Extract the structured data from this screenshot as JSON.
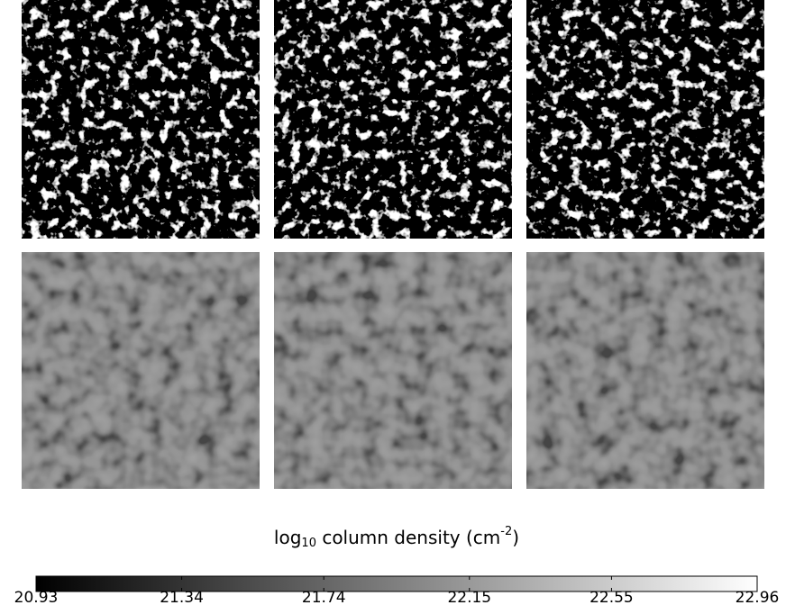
{
  "chart_data": {
    "type": "colorbar",
    "label": {
      "main": "log",
      "sub": "10",
      "middle": " column density (cm",
      "sup": "-2",
      "end": ")"
    },
    "xlim": [
      20.93,
      22.96
    ],
    "xticks": [
      20.93,
      21.34,
      21.74,
      22.15,
      22.55,
      22.96
    ],
    "colors": [
      "#000000",
      "#ffffff"
    ]
  }
}
